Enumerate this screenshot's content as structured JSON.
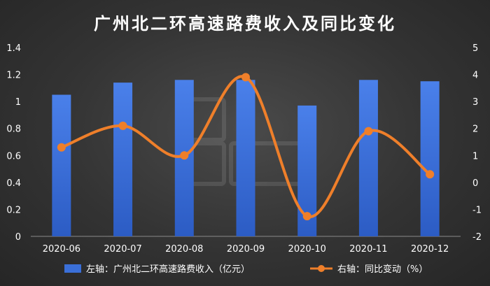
{
  "chart_data": {
    "type": "bar",
    "title": "广州北二环高速路费收入及同比变化",
    "categories": [
      "2020-06",
      "2020-07",
      "2020-08",
      "2020-09",
      "2020-10",
      "2020-11",
      "2020-12"
    ],
    "series": [
      {
        "name": "左轴：广州北二环高速路费收入（亿元）",
        "type": "bar",
        "axis": "left",
        "color": "#3a6fd8",
        "values": [
          1.05,
          1.14,
          1.16,
          1.16,
          0.97,
          1.16,
          1.15
        ]
      },
      {
        "name": "右轴：同比变动（%）",
        "type": "line",
        "axis": "right",
        "smooth": true,
        "color": "#ef7f2a",
        "values": [
          1.3,
          2.1,
          1.0,
          3.9,
          -1.25,
          1.9,
          0.3
        ]
      }
    ],
    "yaxis_left": {
      "ylim": [
        0,
        1.4
      ],
      "ticks": [
        "0",
        "0.2",
        "0.4",
        "0.6",
        "0.8",
        "1",
        "1.2",
        "1.4"
      ]
    },
    "yaxis_right": {
      "ylim": [
        -2,
        5
      ],
      "ticks": [
        "-2",
        "-1",
        "0",
        "1",
        "2",
        "3",
        "4",
        "5"
      ]
    },
    "grid": false,
    "legend_position": "bottom"
  }
}
